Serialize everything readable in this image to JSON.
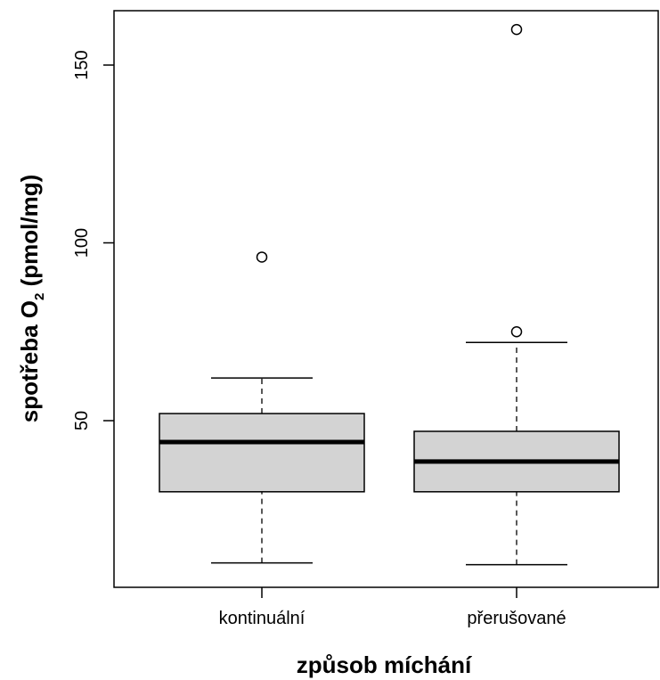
{
  "chart_data": {
    "type": "boxplot",
    "xlabel": "způsob míchání",
    "ylabel": {
      "main": "spotřeba O",
      "subscript": "2",
      "units": " (pmol/mg)"
    },
    "ylim": [
      0,
      160
    ],
    "yticks": [
      50,
      100,
      150
    ],
    "grid": false,
    "categories": [
      "kontinuální",
      "přerušované"
    ],
    "boxes": [
      {
        "category": "kontinuální",
        "whisker_low": 10,
        "q1": 30,
        "median": 44,
        "q3": 52,
        "whisker_high": 62,
        "outliers": [
          96
        ]
      },
      {
        "category": "přerušované",
        "whisker_low": 9.5,
        "q1": 30,
        "median": 38.5,
        "q3": 47,
        "whisker_high": 72,
        "outliers": [
          75,
          160
        ]
      }
    ],
    "colors": {
      "box_fill": "#d3d3d3",
      "stroke": "#000000"
    }
  }
}
